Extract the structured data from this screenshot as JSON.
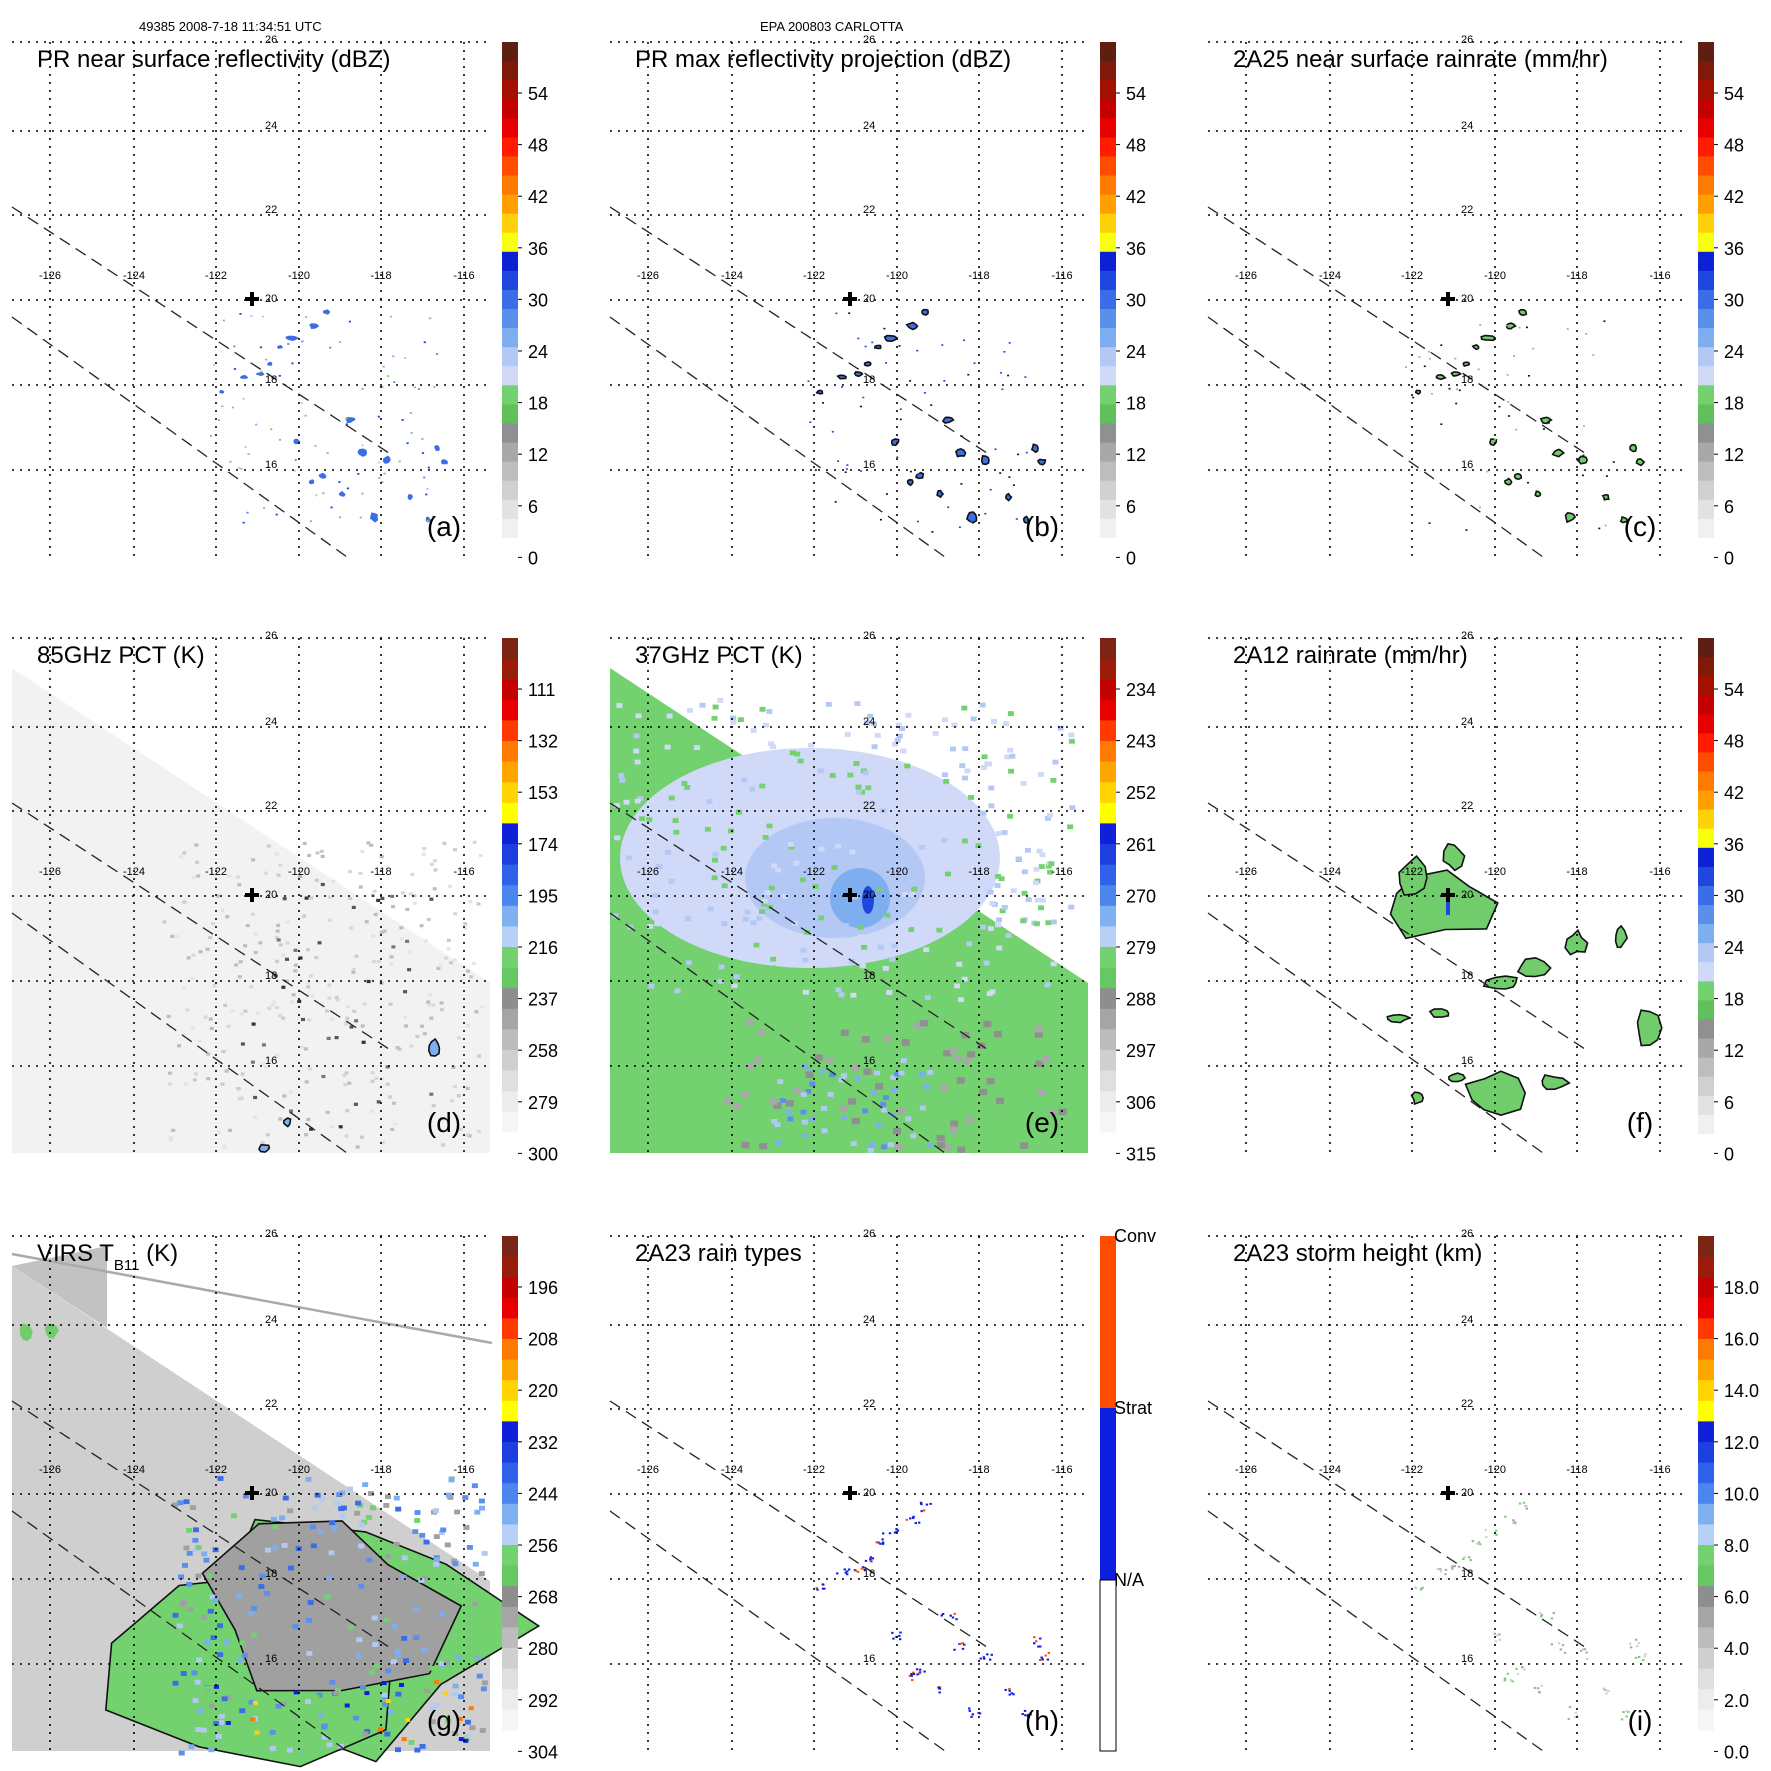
{
  "header": {
    "left": "49385 2008-7-18 11:34:51 UTC",
    "center": "EPA 200803 CARLOTTA"
  },
  "storm_center_marker": "plus-icon",
  "chart_data": [
    {
      "type": "heatmap",
      "panel": "(a)",
      "title": "PR near surface reflectivity (dBZ)",
      "colorbar_ticks": [
        "54",
        "48",
        "42",
        "36",
        "30",
        "24",
        "18",
        "12",
        "6",
        "0"
      ],
      "lon_ticks": [
        "-126",
        "-124",
        "-122",
        "-120",
        "-118",
        "-116"
      ],
      "lat_ticks": [
        "26",
        "24",
        "22",
        "20",
        "18",
        "16"
      ],
      "swath": "PR",
      "echo": "pr"
    },
    {
      "type": "heatmap",
      "panel": "(b)",
      "title": "PR max reflectivity projection (dBZ)",
      "colorbar_ticks": [
        "54",
        "48",
        "42",
        "36",
        "30",
        "24",
        "18",
        "12",
        "6",
        "0"
      ],
      "lon_ticks": [
        "-126",
        "-124",
        "-122",
        "-120",
        "-118",
        "-116"
      ],
      "lat_ticks": [
        "26",
        "24",
        "22",
        "20",
        "18",
        "16"
      ],
      "swath": "PR",
      "echo": "pr_contour"
    },
    {
      "type": "heatmap",
      "panel": "(c)",
      "title": "2A25 near surface rainrate (mm/hr)",
      "colorbar_ticks": [
        "54",
        "48",
        "42",
        "36",
        "30",
        "24",
        "18",
        "12",
        "6",
        "0"
      ],
      "lon_ticks": [
        "-126",
        "-124",
        "-122",
        "-120",
        "-118",
        "-116"
      ],
      "lat_ticks": [
        "26",
        "24",
        "22",
        "20",
        "18",
        "16"
      ],
      "swath": "PR",
      "echo": "pr_green"
    },
    {
      "type": "heatmap",
      "panel": "(d)",
      "title": "85GHz PCT (K)",
      "colorbar_ticks": [
        "111",
        "132",
        "153",
        "174",
        "195",
        "216",
        "237",
        "258",
        "279",
        "300"
      ],
      "lon_ticks": [
        "-126",
        "-124",
        "-122",
        "-120",
        "-118",
        "-116"
      ],
      "lat_ticks": [
        "26",
        "24",
        "22",
        "20",
        "18",
        "16"
      ],
      "swath": "TMI",
      "echo": "pct85"
    },
    {
      "type": "heatmap",
      "panel": "(e)",
      "title": "37GHz PCT (K)",
      "colorbar_ticks": [
        "234",
        "243",
        "252",
        "261",
        "270",
        "279",
        "288",
        "297",
        "306",
        "315"
      ],
      "lon_ticks": [
        "-126",
        "-124",
        "-122",
        "-120",
        "-118",
        "-116"
      ],
      "lat_ticks": [
        "26",
        "24",
        "22",
        "20",
        "18",
        "16"
      ],
      "swath": "TMI",
      "echo": "pct37"
    },
    {
      "type": "heatmap",
      "panel": "(f)",
      "title": "2A12 rainrate (mm/hr)",
      "colorbar_ticks": [
        "54",
        "48",
        "42",
        "36",
        "30",
        "24",
        "18",
        "12",
        "6",
        "0"
      ],
      "lon_ticks": [
        "-126",
        "-124",
        "-122",
        "-120",
        "-118",
        "-116"
      ],
      "lat_ticks": [
        "26",
        "24",
        "22",
        "20",
        "18",
        "16"
      ],
      "swath": "PR",
      "echo": "tmi_rain"
    },
    {
      "type": "heatmap",
      "panel": "(g)",
      "title": "VIRS T",
      "title_subscript": "B11",
      "title_suffix": " (K)",
      "colorbar_ticks": [
        "196",
        "208",
        "220",
        "232",
        "244",
        "256",
        "268",
        "280",
        "292",
        "304"
      ],
      "lon_ticks": [
        "-126",
        "-124",
        "-122",
        "-120",
        "-118",
        "-116"
      ],
      "lat_ticks": [
        "26",
        "24",
        "22",
        "20",
        "18",
        "16"
      ],
      "swath": "VIRS",
      "echo": "virs"
    },
    {
      "type": "heatmap",
      "panel": "(h)",
      "title": "2A23 rain types",
      "colorbar_categories": [
        "Conv",
        "Strat",
        "N/A"
      ],
      "lon_ticks": [
        "-126",
        "-124",
        "-122",
        "-120",
        "-118",
        "-116"
      ],
      "lat_ticks": [
        "26",
        "24",
        "22",
        "20",
        "18",
        "16"
      ],
      "swath": "PR",
      "echo": "raintype"
    },
    {
      "type": "heatmap",
      "panel": "(i)",
      "title": "2A23 storm height (km)",
      "colorbar_ticks": [
        "18.0",
        "16.0",
        "14.0",
        "12.0",
        "10.0",
        "8.0",
        "6.0",
        "4.0",
        "2.0",
        "0.0"
      ],
      "lon_ticks": [
        "-126",
        "-124",
        "-122",
        "-120",
        "-118",
        "-116"
      ],
      "lat_ticks": [
        "26",
        "24",
        "22",
        "20",
        "18",
        "16"
      ],
      "swath": "PR",
      "echo": "stormheight"
    }
  ],
  "colors": {
    "ref_scale": [
      "#ffffff",
      "#f0f0f0",
      "#e2e2e2",
      "#d0d0d0",
      "#bdbdbd",
      "#a8a8a8",
      "#909090",
      "#74d16f",
      "#5fc05c",
      "#d0daf8",
      "#b3c8f5",
      "#7eaef0",
      "#5b8fea",
      "#3b6ee6",
      "#1f47e0",
      "#0d20d4",
      "#f8ff0a",
      "#ffd10a",
      "#ff9f00",
      "#ff7a00",
      "#ff4d00",
      "#ff1a00",
      "#e60000",
      "#c40000",
      "#a31000",
      "#7f1a0a",
      "#5e1f12"
    ],
    "gray_scale": [
      "#ffffff",
      "#f4f4f4",
      "#e8e8e8",
      "#dcdcdc",
      "#cfcfcf",
      "#c2c2c2",
      "#b3b3b3",
      "#a3a3a3"
    ],
    "green": "#71cc6c",
    "strat": "#0d1ee0",
    "conv": "#ff4d00"
  }
}
